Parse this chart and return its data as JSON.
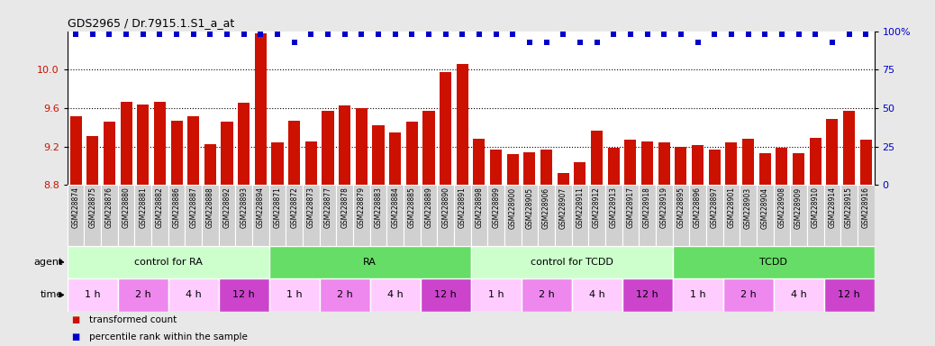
{
  "title": "GDS2965 / Dr.7915.1.S1_a_at",
  "samples": [
    "GSM228874",
    "GSM228875",
    "GSM228876",
    "GSM228880",
    "GSM228881",
    "GSM228882",
    "GSM228886",
    "GSM228887",
    "GSM228888",
    "GSM228892",
    "GSM228893",
    "GSM228894",
    "GSM228871",
    "GSM228872",
    "GSM228873",
    "GSM228877",
    "GSM228878",
    "GSM228879",
    "GSM228883",
    "GSM228884",
    "GSM228885",
    "GSM228889",
    "GSM228890",
    "GSM228891",
    "GSM228898",
    "GSM228899",
    "GSM228900",
    "GSM228905",
    "GSM228906",
    "GSM228907",
    "GSM228911",
    "GSM228912",
    "GSM228913",
    "GSM228917",
    "GSM228918",
    "GSM228919",
    "GSM228895",
    "GSM228896",
    "GSM228897",
    "GSM228901",
    "GSM228903",
    "GSM228904",
    "GSM228908",
    "GSM228909",
    "GSM228910",
    "GSM228914",
    "GSM228915",
    "GSM228916"
  ],
  "bar_values": [
    9.52,
    9.31,
    9.46,
    9.67,
    9.64,
    9.67,
    9.47,
    9.52,
    9.23,
    9.46,
    9.66,
    10.38,
    9.24,
    9.47,
    9.25,
    9.57,
    9.63,
    9.6,
    9.42,
    9.35,
    9.46,
    9.57,
    9.97,
    10.06,
    9.28,
    9.17,
    9.12,
    9.14,
    9.17,
    8.93,
    9.04,
    9.37,
    9.19,
    9.27,
    9.25,
    9.24,
    9.2,
    9.22,
    9.17,
    9.24,
    9.28,
    9.13,
    9.19,
    9.13,
    9.29,
    9.49,
    9.57,
    9.27
  ],
  "percentile_values": [
    98,
    98,
    98,
    98,
    98,
    98,
    98,
    98,
    98,
    98,
    98,
    98,
    98,
    93,
    98,
    98,
    98,
    98,
    98,
    98,
    98,
    98,
    98,
    98,
    98,
    98,
    98,
    93,
    93,
    98,
    93,
    93,
    98,
    98,
    98,
    98,
    98,
    93,
    98,
    98,
    98,
    98,
    98,
    98,
    98,
    93,
    98,
    98
  ],
  "ylim_left": [
    8.8,
    10.4
  ],
  "ylim_right": [
    0,
    100
  ],
  "yticks_left": [
    8.8,
    9.2,
    9.6,
    10.0
  ],
  "yticks_right": [
    0,
    25,
    50,
    75,
    100
  ],
  "bar_color": "#cc1100",
  "dot_color": "#0000cc",
  "agent_groups": [
    {
      "label": "control for RA",
      "start": 0,
      "end": 12,
      "color": "#ccffcc"
    },
    {
      "label": "RA",
      "start": 12,
      "end": 24,
      "color": "#66dd66"
    },
    {
      "label": "control for TCDD",
      "start": 24,
      "end": 36,
      "color": "#ccffcc"
    },
    {
      "label": "TCDD",
      "start": 36,
      "end": 48,
      "color": "#66dd66"
    }
  ],
  "time_groups": [
    {
      "label": "1 h",
      "start": 0,
      "end": 3,
      "color": "#ffccff"
    },
    {
      "label": "2 h",
      "start": 3,
      "end": 6,
      "color": "#ee88ee"
    },
    {
      "label": "4 h",
      "start": 6,
      "end": 9,
      "color": "#ffccff"
    },
    {
      "label": "12 h",
      "start": 9,
      "end": 12,
      "color": "#cc44cc"
    },
    {
      "label": "1 h",
      "start": 12,
      "end": 15,
      "color": "#ffccff"
    },
    {
      "label": "2 h",
      "start": 15,
      "end": 18,
      "color": "#ee88ee"
    },
    {
      "label": "4 h",
      "start": 18,
      "end": 21,
      "color": "#ffccff"
    },
    {
      "label": "12 h",
      "start": 21,
      "end": 24,
      "color": "#cc44cc"
    },
    {
      "label": "1 h",
      "start": 24,
      "end": 27,
      "color": "#ffccff"
    },
    {
      "label": "2 h",
      "start": 27,
      "end": 30,
      "color": "#ee88ee"
    },
    {
      "label": "4 h",
      "start": 30,
      "end": 33,
      "color": "#ffccff"
    },
    {
      "label": "12 h",
      "start": 33,
      "end": 36,
      "color": "#cc44cc"
    },
    {
      "label": "1 h",
      "start": 36,
      "end": 39,
      "color": "#ffccff"
    },
    {
      "label": "2 h",
      "start": 39,
      "end": 42,
      "color": "#ee88ee"
    },
    {
      "label": "4 h",
      "start": 42,
      "end": 45,
      "color": "#ffccff"
    },
    {
      "label": "12 h",
      "start": 45,
      "end": 48,
      "color": "#cc44cc"
    }
  ],
  "legend_items": [
    {
      "label": "transformed count",
      "color": "#cc1100"
    },
    {
      "label": "percentile rank within the sample",
      "color": "#0000cc"
    }
  ],
  "bg_color": "#e8e8e8",
  "plot_bg": "#ffffff",
  "xtick_bg": "#d0d0d0"
}
